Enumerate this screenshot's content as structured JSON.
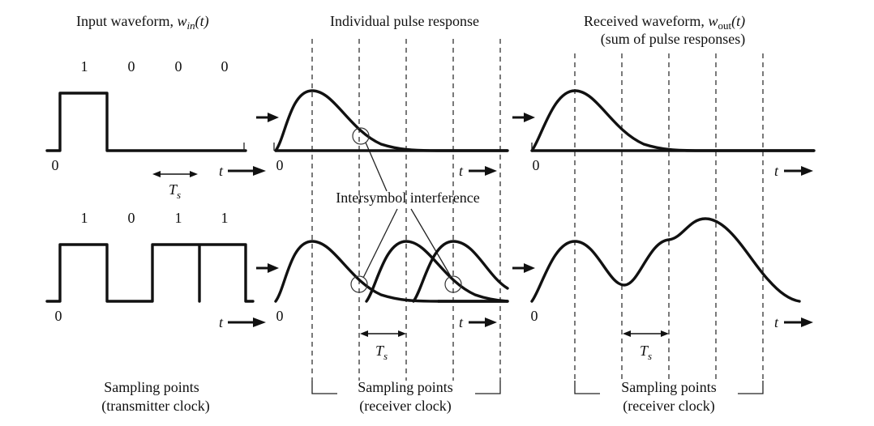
{
  "panels": {
    "input": {
      "title_main": "Input waveform, ",
      "title_var": "w",
      "title_sub": "in",
      "title_arg": "(t)",
      "bits_top": [
        "1",
        "0",
        "0",
        "0"
      ],
      "bits_bottom": [
        "1",
        "0",
        "1",
        "1"
      ],
      "origin": "0",
      "t_label": "t",
      "ts_label": "T",
      "ts_sub": "s",
      "sampling": "Sampling points",
      "clock": "(transmitter clock)"
    },
    "pulse": {
      "title": "Individual pulse response",
      "origin": "0",
      "t_label": "t",
      "ts_label": "T",
      "ts_sub": "s",
      "isi_label": "Intersymbol interference",
      "sampling": "Sampling points",
      "clock": "(receiver clock)"
    },
    "received": {
      "title_main": "Received waveform, ",
      "title_var": "w",
      "title_sub": "out",
      "title_arg": "(t)",
      "subtitle": "(sum of pulse responses)",
      "origin": "0",
      "t_label": "t",
      "ts_label": "T",
      "ts_sub": "s",
      "sampling": "Sampling points",
      "clock": "(receiver clock)"
    }
  }
}
